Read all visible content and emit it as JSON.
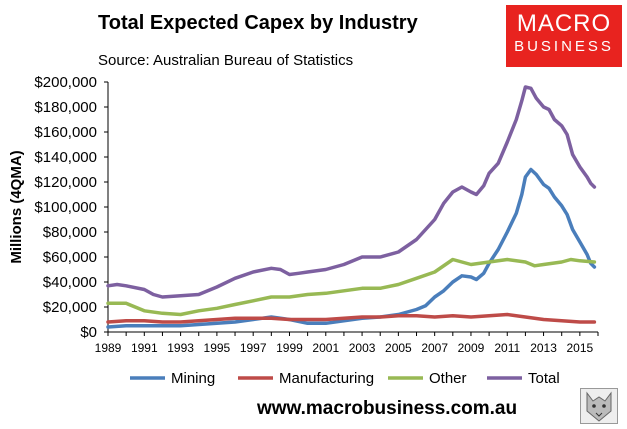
{
  "header": {
    "title": "Total Expected Capex by Industry",
    "subtitle": "Source: Australian Bureau of Statistics"
  },
  "logo": {
    "line1": "MACRO",
    "line2": "BUSINESS"
  },
  "footer": {
    "website": "www.macrobusiness.com.au"
  },
  "chart_data": {
    "type": "line",
    "title": "Total Expected Capex by Industry",
    "xlabel": "",
    "ylabel": "Millions (4QMA)",
    "ylim": [
      0,
      200000
    ],
    "xlim": [
      1989,
      2016
    ],
    "yticks": [
      0,
      20000,
      40000,
      60000,
      80000,
      100000,
      120000,
      140000,
      160000,
      180000,
      200000
    ],
    "ytick_labels": [
      "$0",
      "$20,000",
      "$40,000",
      "$60,000",
      "$80,000",
      "$100,000",
      "$120,000",
      "$140,000",
      "$160,000",
      "$180,000",
      "$200,000"
    ],
    "xticks": [
      1989,
      1991,
      1993,
      1995,
      1997,
      1999,
      2001,
      2003,
      2005,
      2007,
      2009,
      2011,
      2013,
      2015
    ],
    "xtick_labels": [
      "1989",
      "1991",
      "1993",
      "1995",
      "1997",
      "1999",
      "2001",
      "2003",
      "2005",
      "2007",
      "2009",
      "2011",
      "2013",
      "2015"
    ],
    "legend_position": "bottom",
    "series": [
      {
        "name": "Mining",
        "color": "#4a7ebb",
        "points": [
          [
            1989,
            4000
          ],
          [
            1990,
            5000
          ],
          [
            1991,
            5000
          ],
          [
            1992,
            5000
          ],
          [
            1993,
            5000
          ],
          [
            1994,
            6000
          ],
          [
            1995,
            7000
          ],
          [
            1996,
            8000
          ],
          [
            1997,
            10000
          ],
          [
            1998,
            12000
          ],
          [
            1999,
            10000
          ],
          [
            2000,
            7000
          ],
          [
            2001,
            7000
          ],
          [
            2002,
            9000
          ],
          [
            2003,
            11000
          ],
          [
            2004,
            12000
          ],
          [
            2005,
            14000
          ],
          [
            2006,
            18000
          ],
          [
            2006.5,
            21000
          ],
          [
            2007,
            28000
          ],
          [
            2007.5,
            33000
          ],
          [
            2008,
            40000
          ],
          [
            2008.5,
            45000
          ],
          [
            2009,
            44000
          ],
          [
            2009.3,
            42000
          ],
          [
            2009.7,
            47000
          ],
          [
            2010,
            55000
          ],
          [
            2010.5,
            66000
          ],
          [
            2011,
            80000
          ],
          [
            2011.5,
            95000
          ],
          [
            2011.8,
            110000
          ],
          [
            2012,
            124000
          ],
          [
            2012.3,
            130000
          ],
          [
            2012.6,
            126000
          ],
          [
            2013,
            118000
          ],
          [
            2013.3,
            115000
          ],
          [
            2013.6,
            108000
          ],
          [
            2014,
            101000
          ],
          [
            2014.3,
            94000
          ],
          [
            2014.6,
            82000
          ],
          [
            2015,
            72000
          ],
          [
            2015.4,
            62000
          ],
          [
            2015.6,
            55000
          ],
          [
            2015.8,
            52000
          ]
        ]
      },
      {
        "name": "Manufacturing",
        "color": "#be4b48",
        "points": [
          [
            1989,
            8000
          ],
          [
            1990,
            9000
          ],
          [
            1991,
            9000
          ],
          [
            1992,
            8000
          ],
          [
            1993,
            8000
          ],
          [
            1994,
            9000
          ],
          [
            1995,
            10000
          ],
          [
            1996,
            11000
          ],
          [
            1997,
            11000
          ],
          [
            1998,
            11000
          ],
          [
            1999,
            10000
          ],
          [
            2000,
            10000
          ],
          [
            2001,
            10000
          ],
          [
            2002,
            11000
          ],
          [
            2003,
            12000
          ],
          [
            2004,
            12000
          ],
          [
            2005,
            13000
          ],
          [
            2006,
            13000
          ],
          [
            2007,
            12000
          ],
          [
            2008,
            13000
          ],
          [
            2009,
            12000
          ],
          [
            2010,
            13000
          ],
          [
            2011,
            14000
          ],
          [
            2012,
            12000
          ],
          [
            2013,
            10000
          ],
          [
            2014,
            9000
          ],
          [
            2015,
            8000
          ],
          [
            2015.8,
            8000
          ]
        ]
      },
      {
        "name": "Other",
        "color": "#98b954",
        "points": [
          [
            1989,
            23000
          ],
          [
            1990,
            23000
          ],
          [
            1991,
            17000
          ],
          [
            1992,
            15000
          ],
          [
            1993,
            14000
          ],
          [
            1994,
            17000
          ],
          [
            1995,
            19000
          ],
          [
            1996,
            22000
          ],
          [
            1997,
            25000
          ],
          [
            1998,
            28000
          ],
          [
            1999,
            28000
          ],
          [
            2000,
            30000
          ],
          [
            2001,
            31000
          ],
          [
            2002,
            33000
          ],
          [
            2003,
            35000
          ],
          [
            2004,
            35000
          ],
          [
            2005,
            38000
          ],
          [
            2006,
            43000
          ],
          [
            2007,
            48000
          ],
          [
            2008,
            58000
          ],
          [
            2009,
            54000
          ],
          [
            2010,
            56000
          ],
          [
            2011,
            58000
          ],
          [
            2012,
            56000
          ],
          [
            2012.5,
            53000
          ],
          [
            2013,
            54000
          ],
          [
            2014,
            56000
          ],
          [
            2014.5,
            58000
          ],
          [
            2015,
            57000
          ],
          [
            2015.8,
            56000
          ]
        ]
      },
      {
        "name": "Total",
        "color": "#7d60a0",
        "points": [
          [
            1989,
            37000
          ],
          [
            1989.5,
            38000
          ],
          [
            1990,
            37000
          ],
          [
            1991,
            34000
          ],
          [
            1991.5,
            30000
          ],
          [
            1992,
            28000
          ],
          [
            1993,
            29000
          ],
          [
            1994,
            30000
          ],
          [
            1995,
            36000
          ],
          [
            1996,
            43000
          ],
          [
            1997,
            48000
          ],
          [
            1998,
            51000
          ],
          [
            1998.5,
            50000
          ],
          [
            1999,
            46000
          ],
          [
            1999.5,
            47000
          ],
          [
            2000,
            48000
          ],
          [
            2001,
            50000
          ],
          [
            2002,
            54000
          ],
          [
            2003,
            60000
          ],
          [
            2004,
            60000
          ],
          [
            2005,
            64000
          ],
          [
            2006,
            74000
          ],
          [
            2007,
            90000
          ],
          [
            2007.5,
            103000
          ],
          [
            2008,
            112000
          ],
          [
            2008.5,
            116000
          ],
          [
            2009,
            112000
          ],
          [
            2009.3,
            110000
          ],
          [
            2009.7,
            117000
          ],
          [
            2010,
            127000
          ],
          [
            2010.5,
            135000
          ],
          [
            2011,
            152000
          ],
          [
            2011.5,
            170000
          ],
          [
            2011.8,
            185000
          ],
          [
            2012,
            196000
          ],
          [
            2012.3,
            195000
          ],
          [
            2012.6,
            187000
          ],
          [
            2013,
            180000
          ],
          [
            2013.3,
            178000
          ],
          [
            2013.6,
            170000
          ],
          [
            2014,
            165000
          ],
          [
            2014.3,
            158000
          ],
          [
            2014.6,
            142000
          ],
          [
            2015,
            132000
          ],
          [
            2015.4,
            124000
          ],
          [
            2015.6,
            119000
          ],
          [
            2015.8,
            116000
          ]
        ]
      }
    ]
  }
}
